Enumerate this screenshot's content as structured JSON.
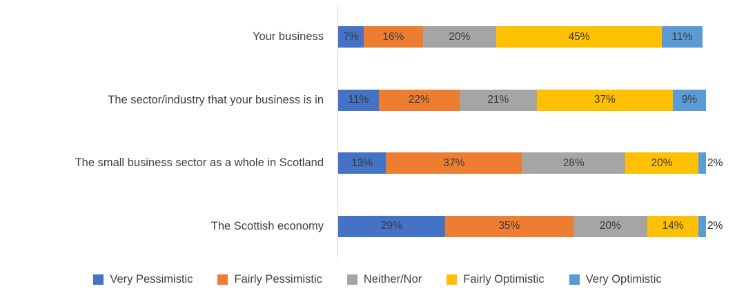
{
  "chart_data": {
    "type": "bar",
    "orientation": "horizontal",
    "stacked": true,
    "title": "",
    "xlabel": "",
    "ylabel": "",
    "xlim": [
      0,
      100
    ],
    "grid": false,
    "legend_position": "bottom",
    "value_suffix": "%",
    "categories": [
      "Your business",
      "The sector/industry that your business is in",
      "The small business sector as a whole in Scotland",
      "The Scottish economy"
    ],
    "series": [
      {
        "name": "Very Pessimistic",
        "color": "#4472C4",
        "values": [
          7,
          11,
          13,
          29
        ]
      },
      {
        "name": "Fairly Pessimistic",
        "color": "#ED7D31",
        "values": [
          16,
          22,
          37,
          35
        ]
      },
      {
        "name": "Neither/Nor",
        "color": "#A5A5A5",
        "values": [
          20,
          21,
          28,
          20
        ]
      },
      {
        "name": "Fairly Optimistic",
        "color": "#FFC000",
        "values": [
          45,
          37,
          20,
          14
        ]
      },
      {
        "name": "Very Optimistic",
        "color": "#5B9BD5",
        "values": [
          11,
          9,
          2,
          2
        ]
      }
    ],
    "outside_label_threshold": 4
  }
}
